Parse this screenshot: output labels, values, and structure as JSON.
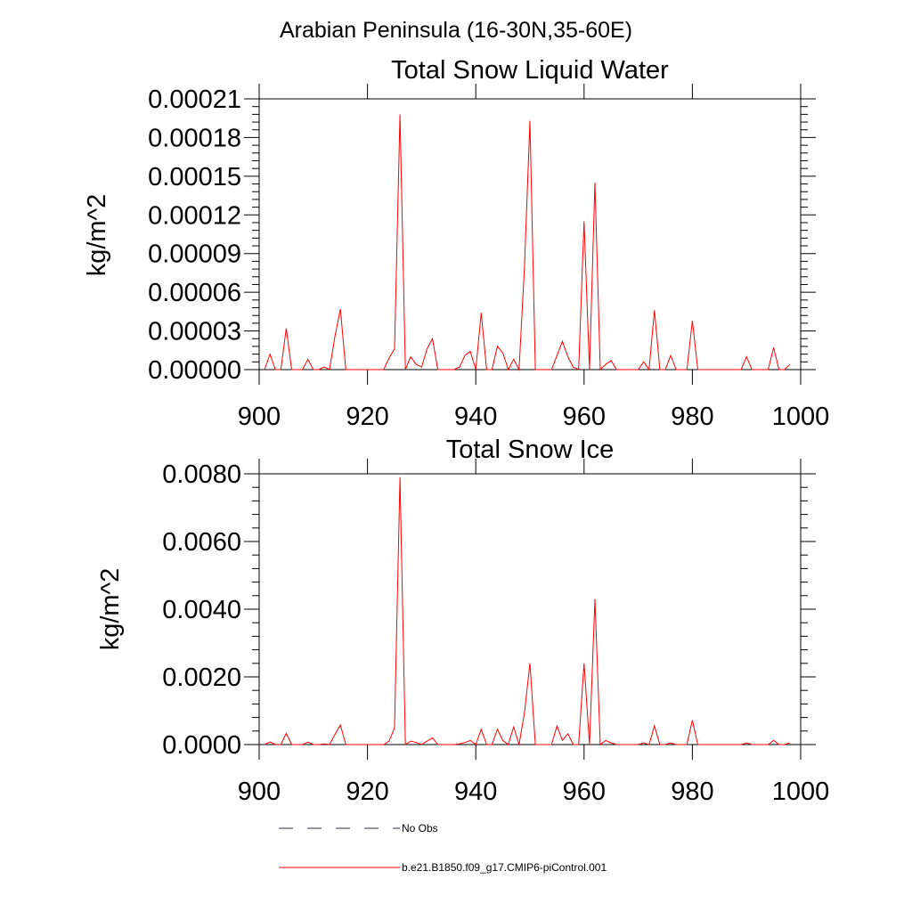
{
  "figure": {
    "title": "Arabian Peninsula (16-30N,35-60E)"
  },
  "legend": {
    "items": [
      {
        "label": "No Obs",
        "color": "#2a2a5a",
        "style": "dashed"
      },
      {
        "label": "b.e21.B1850.f09_g17.CMIP6-piControl.001",
        "color": "#ff0000",
        "style": "solid"
      }
    ]
  },
  "chart_data": [
    {
      "type": "line",
      "title": "Total Snow Liquid Water",
      "ylabel": "kg/m^2",
      "xlabel": "",
      "xlim": [
        900,
        1000
      ],
      "ylim": [
        0,
        0.00021
      ],
      "xticks": [
        900,
        920,
        940,
        960,
        980,
        1000
      ],
      "xtick_labels": [
        "900",
        "920",
        "940",
        "960",
        "980",
        "1000"
      ],
      "yticks": [
        0,
        3e-05,
        6e-05,
        9e-05,
        0.00012,
        0.00015,
        0.00018,
        0.00021
      ],
      "ytick_labels": [
        "0.00000",
        "0.00003",
        "0.00006",
        "0.00009",
        "0.00012",
        "0.00015",
        "0.00018",
        "0.00021"
      ],
      "grid": false,
      "series": [
        {
          "color": "#ff0000",
          "x": [
            901,
            902,
            903,
            904,
            905,
            906,
            907,
            908,
            909,
            910,
            911,
            912,
            913,
            914,
            915,
            916,
            917,
            918,
            919,
            920,
            921,
            922,
            923,
            924,
            925,
            926,
            927,
            928,
            929,
            930,
            931,
            932,
            933,
            934,
            935,
            936,
            937,
            938,
            939,
            940,
            941,
            942,
            943,
            944,
            945,
            946,
            947,
            948,
            949,
            950,
            951,
            952,
            953,
            954,
            955,
            956,
            957,
            958,
            959,
            960,
            961,
            962,
            963,
            964,
            965,
            966,
            967,
            968,
            969,
            970,
            971,
            972,
            973,
            974,
            975,
            976,
            977,
            978,
            979,
            980,
            981,
            982,
            983,
            984,
            985,
            986,
            987,
            988,
            989,
            990,
            991,
            992,
            993,
            994,
            995,
            996,
            997,
            998
          ],
          "values": [
            0,
            1.2e-05,
            0,
            0,
            3.2e-05,
            0,
            0,
            0,
            8e-06,
            0,
            0,
            2e-06,
            0,
            2.6e-05,
            4.7e-05,
            0,
            0,
            0,
            0,
            0,
            0,
            0,
            0,
            9e-06,
            1.6e-05,
            0.000198,
            0,
            1e-05,
            4e-06,
            2e-06,
            1.6e-05,
            2.4e-05,
            0,
            0,
            0,
            0,
            2e-06,
            1.1e-05,
            1.4e-05,
            0,
            4.4e-05,
            0,
            0,
            1.8e-05,
            1.3e-05,
            0,
            8e-06,
            0,
            8e-05,
            0.000193,
            0,
            0,
            0,
            0,
            1.1e-05,
            2.2e-05,
            1e-05,
            2e-06,
            0,
            0.000115,
            0,
            0.000145,
            0,
            4e-06,
            7e-06,
            0,
            0,
            0,
            0,
            0,
            6e-06,
            0,
            4.6e-05,
            0,
            0,
            1.1e-05,
            0,
            0,
            0,
            3.8e-05,
            0,
            0,
            0,
            0,
            0,
            0,
            0,
            0,
            0,
            1e-05,
            0,
            0,
            0,
            0,
            1.7e-05,
            0,
            0,
            4e-06
          ]
        }
      ]
    },
    {
      "type": "line",
      "title": "Total Snow Ice",
      "ylabel": "kg/m^2",
      "xlabel": "",
      "xlim": [
        900,
        1000
      ],
      "ylim": [
        0,
        0.008
      ],
      "xticks": [
        900,
        920,
        940,
        960,
        980,
        1000
      ],
      "xtick_labels": [
        "900",
        "920",
        "940",
        "960",
        "980",
        "1000"
      ],
      "yticks": [
        0,
        0.002,
        0.004,
        0.006,
        0.008
      ],
      "ytick_labels": [
        "0.0000",
        "0.0020",
        "0.0040",
        "0.0060",
        "0.0080"
      ],
      "grid": false,
      "series": [
        {
          "color": "#ff0000",
          "x": [
            901,
            902,
            903,
            904,
            905,
            906,
            907,
            908,
            909,
            910,
            911,
            912,
            913,
            914,
            915,
            916,
            917,
            918,
            919,
            920,
            921,
            922,
            923,
            924,
            925,
            926,
            927,
            928,
            929,
            930,
            931,
            932,
            933,
            934,
            935,
            936,
            937,
            938,
            939,
            940,
            941,
            942,
            943,
            944,
            945,
            946,
            947,
            948,
            949,
            950,
            951,
            952,
            953,
            954,
            955,
            956,
            957,
            958,
            959,
            960,
            961,
            962,
            963,
            964,
            965,
            966,
            967,
            968,
            969,
            970,
            971,
            972,
            973,
            974,
            975,
            976,
            977,
            978,
            979,
            980,
            981,
            982,
            983,
            984,
            985,
            986,
            987,
            988,
            989,
            990,
            991,
            992,
            993,
            994,
            995,
            996,
            997,
            998
          ],
          "values": [
            0,
            8e-05,
            0,
            0,
            0.00033,
            0,
            0,
            0,
            7e-05,
            0,
            0,
            2e-05,
            0,
            0.0003,
            0.00058,
            0,
            0,
            0,
            0,
            0,
            0,
            0,
            0,
            0.0001,
            0.0005,
            0.0079,
            0,
            0.0001,
            6e-05,
            0,
            0.0001,
            0.0002,
            0,
            0,
            0,
            0,
            2e-05,
            6e-05,
            0.00012,
            0,
            0.00045,
            0,
            0,
            0.00045,
            0.00012,
            0,
            0.00052,
            0,
            0.00095,
            0.0024,
            0,
            0,
            0,
            0,
            0.00055,
            0.00012,
            0.00032,
            0,
            0,
            0.0024,
            0,
            0.0043,
            0,
            0.00012,
            5e-05,
            0,
            0,
            0,
            0,
            0,
            5e-05,
            0,
            0.00055,
            0,
            0,
            5e-05,
            0,
            0,
            0,
            0.00072,
            0,
            0,
            0,
            0,
            0,
            0,
            0,
            0,
            0,
            5e-05,
            0,
            0,
            0,
            0,
            0.00012,
            0,
            0,
            5e-05
          ]
        }
      ]
    }
  ]
}
